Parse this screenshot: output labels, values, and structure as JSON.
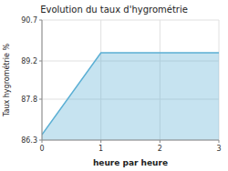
{
  "chart_data": {
    "type": "area",
    "title": "Evolution du taux d'hygrométrie",
    "x_label": "heure par heure",
    "y_label": "Taux hygrométrie %",
    "x": [
      0,
      1,
      3
    ],
    "values": [
      86.5,
      89.5,
      89.5
    ],
    "color": "#5bafd4",
    "xlim": [
      0,
      3
    ],
    "ylim": [
      86.3,
      90.7
    ],
    "xticks": [
      0,
      1,
      2,
      3
    ],
    "yticks": [
      86.3,
      87.8,
      89.2,
      90.7
    ],
    "grid": true
  }
}
